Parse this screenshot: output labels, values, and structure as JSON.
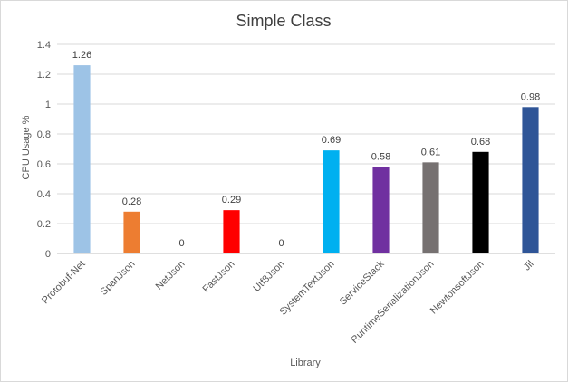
{
  "chart_data": {
    "type": "bar",
    "title": "Simple Class",
    "xlabel": "Library",
    "ylabel": "CPU Usage %",
    "ylim": [
      0,
      1.4
    ],
    "yticks": [
      "0",
      "0.2",
      "0.4",
      "0.6",
      "0.8",
      "1",
      "1.2",
      "1.4"
    ],
    "categories": [
      "Protobuf-Net",
      "SpanJson",
      "NetJson",
      "FastJson",
      "Utf8Json",
      "SystemTextJson",
      "ServiceStack",
      "RuntimeSerializationJson",
      "NewtonsoftJson",
      "Jil"
    ],
    "values": [
      1.26,
      0.28,
      0,
      0.29,
      0,
      0.69,
      0.58,
      0.61,
      0.68,
      0.98
    ],
    "value_labels": [
      "1.26",
      "0.28",
      "0",
      "0.29",
      "0",
      "0.69",
      "0.58",
      "0.61",
      "0.68",
      "0.98"
    ],
    "colors": [
      "#9dc3e6",
      "#ed7d31",
      "#a5a5a5",
      "#ff0000",
      "#4472c4",
      "#00b0f0",
      "#7030a0",
      "#767171",
      "#000000",
      "#2f5597"
    ],
    "grid": true,
    "legend": "none"
  }
}
